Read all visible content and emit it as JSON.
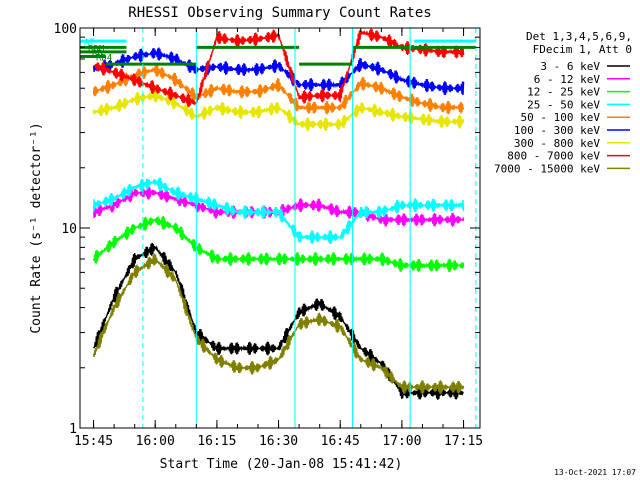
{
  "chart_data": {
    "type": "line",
    "title": "RHESSI Observing Summary Count Rates",
    "xlabel": "Start Time (20-Jan-08 15:41:42)",
    "ylabel": "Count Rate (s⁻¹ detector⁻¹)",
    "y_scale": "log",
    "ylim": [
      1,
      100
    ],
    "xlim": [
      "15:41:42",
      "17:19:00"
    ],
    "x_ticks": [
      "15:45",
      "16:00",
      "16:15",
      "16:30",
      "16:45",
      "17:00",
      "17:15"
    ],
    "y_ticks": [
      "1",
      "10",
      "100"
    ],
    "legend_header": [
      "Det 1,3,4,5,6,9,",
      "FDecim 1, Att 0"
    ],
    "legend_position": "right",
    "series": [
      {
        "name": "3 - 6 keV",
        "color": "#000000",
        "x": [
          "15:45",
          "15:50",
          "15:55",
          "16:00",
          "16:05",
          "16:10",
          "16:15",
          "16:20",
          "16:25",
          "16:30",
          "16:35",
          "16:40",
          "16:45",
          "16:50",
          "16:55",
          "17:00",
          "17:05",
          "17:10",
          "17:15"
        ],
        "y": [
          2.5,
          4.5,
          7,
          8,
          6,
          3,
          2.5,
          2.5,
          2.5,
          2.5,
          3.8,
          4.2,
          3.6,
          2.5,
          2.1,
          1.5,
          1.5,
          1.5,
          1.5
        ]
      },
      {
        "name": "6 - 12 keV",
        "color": "#ff00ff",
        "x": [
          "15:45",
          "15:50",
          "15:55",
          "16:00",
          "16:05",
          "16:10",
          "16:15",
          "16:20",
          "16:25",
          "16:30",
          "16:35",
          "16:40",
          "16:45",
          "16:50",
          "16:55",
          "17:00",
          "17:05",
          "17:10",
          "17:15"
        ],
        "y": [
          12,
          13,
          15,
          15,
          14,
          13,
          12,
          12,
          12,
          12,
          13,
          13,
          12,
          12,
          11,
          11,
          11,
          11,
          11
        ]
      },
      {
        "name": "12 - 25 keV",
        "color": "#00ff00",
        "x": [
          "15:45",
          "15:50",
          "15:55",
          "16:00",
          "16:05",
          "16:10",
          "16:15",
          "16:20",
          "16:25",
          "16:30",
          "16:35",
          "16:40",
          "16:45",
          "16:50",
          "16:55",
          "17:00",
          "17:05",
          "17:10",
          "17:15"
        ],
        "y": [
          7,
          8.5,
          10,
          11,
          10,
          8,
          7,
          7,
          7,
          7,
          7,
          7,
          7,
          7,
          7,
          6.5,
          6.5,
          6.5,
          6.5
        ]
      },
      {
        "name": "25 - 50 keV",
        "color": "#00ffff",
        "x": [
          "15:45",
          "15:50",
          "15:55",
          "16:00",
          "16:05",
          "16:10",
          "16:15",
          "16:20",
          "16:25",
          "16:30",
          "16:35",
          "16:40",
          "16:45",
          "16:50",
          "16:55",
          "17:00",
          "17:05",
          "17:10",
          "17:15"
        ],
        "y": [
          13,
          14,
          16,
          17,
          15,
          14,
          13,
          12,
          12,
          12,
          9,
          9,
          9,
          12,
          12,
          13,
          13,
          13,
          13
        ]
      },
      {
        "name": "50 - 100 keV",
        "color": "#ff7f00",
        "x": [
          "15:45",
          "15:50",
          "15:55",
          "16:00",
          "16:05",
          "16:10",
          "16:15",
          "16:20",
          "16:25",
          "16:30",
          "16:35",
          "16:40",
          "16:45",
          "16:50",
          "16:55",
          "17:00",
          "17:05",
          "17:10",
          "17:15"
        ],
        "y": [
          48,
          52,
          58,
          62,
          55,
          45,
          50,
          48,
          48,
          52,
          40,
          40,
          40,
          53,
          50,
          45,
          42,
          40,
          40
        ]
      },
      {
        "name": "100 - 300 keV",
        "color": "#0000ff",
        "x": [
          "15:45",
          "15:50",
          "15:55",
          "16:00",
          "16:05",
          "16:10",
          "16:15",
          "16:20",
          "16:25",
          "16:30",
          "16:35",
          "16:40",
          "16:45",
          "16:50",
          "16:55",
          "17:00",
          "17:05",
          "17:10",
          "17:15"
        ],
        "y": [
          62,
          66,
          72,
          75,
          70,
          62,
          64,
          62,
          62,
          65,
          52,
          52,
          52,
          66,
          62,
          55,
          52,
          50,
          50
        ]
      },
      {
        "name": "300 - 800 keV",
        "color": "#e6e600",
        "x": [
          "15:45",
          "15:50",
          "15:55",
          "16:00",
          "16:05",
          "16:10",
          "16:15",
          "16:20",
          "16:25",
          "16:30",
          "16:35",
          "16:40",
          "16:45",
          "16:50",
          "16:55",
          "17:00",
          "17:05",
          "17:10",
          "17:15"
        ],
        "y": [
          38,
          40,
          44,
          46,
          42,
          36,
          40,
          38,
          38,
          40,
          33,
          33,
          33,
          40,
          38,
          36,
          35,
          34,
          34
        ]
      },
      {
        "name": "800 - 7000 keV",
        "color": "#ff0000",
        "x": [
          "15:45",
          "15:50",
          "15:55",
          "16:00",
          "16:05",
          "16:10",
          "16:15",
          "16:20",
          "16:25",
          "16:30",
          "16:35",
          "16:40",
          "16:45",
          "16:50",
          "16:55",
          "17:00",
          "17:05",
          "17:10",
          "17:15"
        ],
        "y": [
          65,
          60,
          55,
          50,
          46,
          42,
          90,
          86,
          88,
          92,
          45,
          46,
          46,
          95,
          90,
          80,
          78,
          76,
          76
        ]
      },
      {
        "name": "7000 - 15000 keV",
        "color": "#808000",
        "x": [
          "15:45",
          "15:50",
          "15:55",
          "16:00",
          "16:05",
          "16:10",
          "16:15",
          "16:20",
          "16:25",
          "16:30",
          "16:35",
          "16:40",
          "16:45",
          "16:50",
          "16:55",
          "17:00",
          "17:05",
          "17:10",
          "17:15"
        ],
        "y": [
          2.3,
          4,
          6,
          7,
          5.5,
          2.8,
          2.2,
          2,
          2,
          2.2,
          3.3,
          3.5,
          3.2,
          2.2,
          2,
          1.6,
          1.6,
          1.6,
          1.6
        ]
      }
    ],
    "flag_bars": [
      {
        "label": "AT",
        "color": "#00ffff",
        "y": 86,
        "segments": [
          [
            "15:41:42",
            "15:53"
          ],
          [
            "17:03",
            "17:18"
          ]
        ]
      },
      {
        "label": "RDM",
        "color": "#008000",
        "y": 80,
        "segments": [
          [
            "15:41:42",
            "15:53"
          ],
          [
            "16:10",
            "16:35"
          ],
          [
            "16:48",
            "17:03"
          ],
          [
            "17:03",
            "17:18"
          ]
        ]
      },
      {
        "label": "RD",
        "color": "#008000",
        "y": 76,
        "segments": [
          [
            "15:41:42",
            "15:53"
          ]
        ]
      },
      {
        "label": "RD4",
        "color": "#008000",
        "y": 72,
        "segments": [
          [
            "15:41:42",
            "15:48"
          ]
        ]
      },
      {
        "label": "",
        "color": "#008000",
        "y": 66,
        "segments": [
          [
            "15:48",
            "16:10"
          ],
          [
            "16:35",
            "16:48"
          ]
        ]
      }
    ],
    "vertical_markers": [
      {
        "x": "15:41:42",
        "color": "#00ffff",
        "style": "solid"
      },
      {
        "x": "15:57",
        "color": "#00ffff",
        "style": "dashed"
      },
      {
        "x": "16:10",
        "color": "#00ffff",
        "style": "solid"
      },
      {
        "x": "16:34",
        "color": "#00ffff",
        "style": "solid"
      },
      {
        "x": "16:48",
        "color": "#00ffff",
        "style": "solid"
      },
      {
        "x": "17:02",
        "color": "#00ffff",
        "style": "solid"
      },
      {
        "x": "17:02",
        "color": "#00ffff",
        "style": "dashed"
      },
      {
        "x": "17:18",
        "color": "#00ffff",
        "style": "dashed"
      }
    ],
    "grid": false
  },
  "footer": {
    "timestamp": "13-Oct-2021 17:07"
  }
}
